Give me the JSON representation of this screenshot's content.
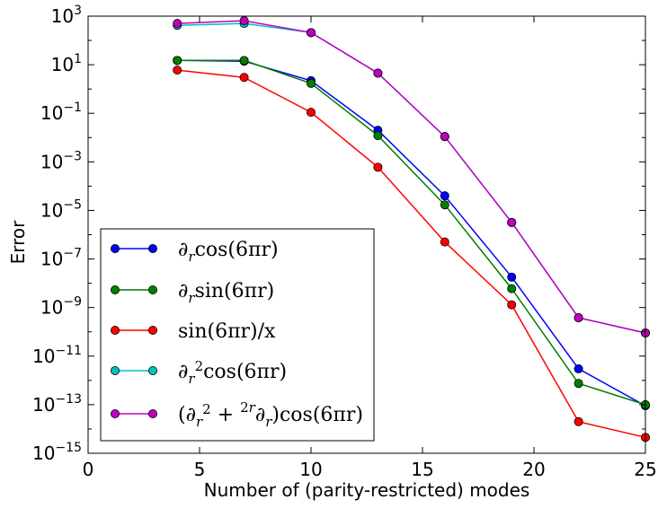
{
  "chart_data": {
    "type": "line",
    "title": "",
    "xlabel": "Number of (parity-restricted) modes",
    "ylabel": "Error",
    "xlim": [
      0,
      25
    ],
    "ylim_exponent": [
      -15,
      3
    ],
    "yscale": "log",
    "grid": false,
    "legend_position": "lower-left",
    "x_ticks": [
      0,
      5,
      10,
      15,
      20,
      25
    ],
    "y_tick_exponents": [
      -15,
      -13,
      -11,
      -9,
      -7,
      -5,
      -3,
      -1,
      1,
      3
    ],
    "x": [
      4,
      7,
      10,
      13,
      16,
      19,
      22,
      25
    ],
    "series": [
      {
        "name": "∂ᵣcos(6πr)",
        "legend_tex": [
          "∂",
          "r",
          "cos(6πr)"
        ],
        "color": "#0000ff",
        "values": [
          15,
          14,
          2.2,
          0.02,
          4e-05,
          1.8e-08,
          3e-12,
          9e-14
        ]
      },
      {
        "name": "∂ᵣsin(6πr)",
        "legend_tex": [
          "∂",
          "r",
          "sin(6πr)"
        ],
        "color": "#007f00",
        "values": [
          15,
          15,
          1.7,
          0.012,
          1.7e-05,
          6e-09,
          7.5e-13,
          1e-13
        ]
      },
      {
        "name": "sin(6πr)/x",
        "legend_tex": [
          "sin(6πr)/x"
        ],
        "color": "#ff0000",
        "values": [
          6,
          3,
          0.11,
          0.0006,
          5e-07,
          1.3e-09,
          2e-14,
          4.5e-15
        ]
      },
      {
        "name": "∂ᵣ²cos(6πr)",
        "legend_tex": [
          "∂",
          "r",
          "2",
          "cos(6πr)"
        ],
        "color": "#00bfbf",
        "values": [
          420,
          500,
          210,
          4.5,
          0.011,
          3.2e-06,
          3.8e-10,
          9e-11
        ]
      },
      {
        "name": "(∂ᵣ² + 2/r ∂ᵣ)cos(6πr)",
        "legend_tex": [
          "(∂",
          "r",
          "2",
          " + ",
          "2",
          "r",
          "∂",
          "r",
          ")cos(6πr)"
        ],
        "color": "#bf00bf",
        "values": [
          500,
          650,
          210,
          4.5,
          0.011,
          3.2e-06,
          3.8e-10,
          9e-11
        ]
      }
    ]
  }
}
